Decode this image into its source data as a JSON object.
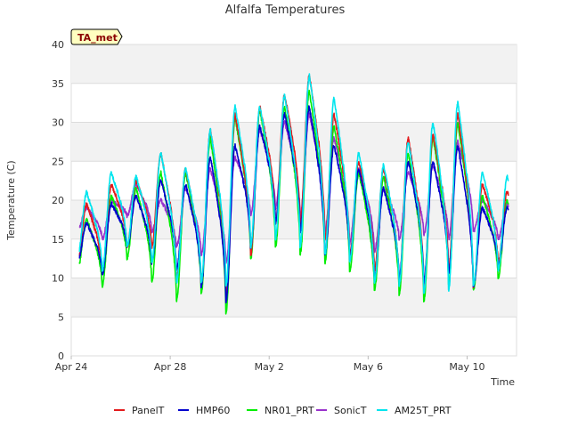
{
  "chart_data": {
    "type": "line",
    "title": "Alfalfa Temperatures",
    "xlabel": "Time",
    "ylabel": "Temperature (C)",
    "badge": "TA_met",
    "ylim": [
      0,
      40
    ],
    "yticks": [
      0,
      5,
      10,
      15,
      20,
      25,
      30,
      35,
      40
    ],
    "xlim": [
      "2023-04-24",
      "2023-05-12"
    ],
    "xticks": [
      {
        "date": "2023-04-24",
        "label": "Apr 24"
      },
      {
        "date": "2023-04-28",
        "label": "Apr 28"
      },
      {
        "date": "2023-05-02",
        "label": "May 2"
      },
      {
        "date": "2023-05-06",
        "label": "May 6"
      },
      {
        "date": "2023-05-10",
        "label": "May 10"
      }
    ],
    "grid": true,
    "legend_position": "bottom",
    "x": [
      "2023-04-24",
      "2023-04-25",
      "2023-04-26",
      "2023-04-27",
      "2023-04-28",
      "2023-04-29",
      "2023-04-30",
      "2023-05-01",
      "2023-05-02",
      "2023-05-03",
      "2023-05-04",
      "2023-05-05",
      "2023-05-06",
      "2023-05-07",
      "2023-05-08",
      "2023-05-09",
      "2023-05-10",
      "2023-05-11"
    ],
    "series": [
      {
        "name": "PanelT",
        "color": "#e31a1c",
        "min": [
          12,
          10.5,
          14,
          14,
          10,
          9,
          8,
          13,
          17,
          17,
          15,
          13,
          11,
          9.5,
          9,
          11,
          9,
          12
        ],
        "max": [
          19.5,
          22,
          22.5,
          26,
          24,
          29,
          31,
          32,
          33.5,
          36,
          31,
          25,
          24,
          28,
          28.5,
          31,
          22,
          21
        ]
      },
      {
        "name": "HMP60",
        "color": "#0000cd",
        "min": [
          12,
          10.5,
          14,
          12,
          11,
          9,
          7,
          14,
          17,
          16,
          13,
          12.5,
          10,
          10,
          9.5,
          10.5,
          9,
          11.5
        ],
        "max": [
          17,
          19.5,
          20.5,
          22.5,
          22,
          25.5,
          27,
          29.5,
          31,
          32,
          27,
          24,
          21.5,
          25,
          25,
          27,
          19,
          19
        ]
      },
      {
        "name": "NR01_PRT",
        "color": "#00ee00",
        "min": [
          11,
          9,
          12.5,
          9.5,
          7,
          8,
          5.5,
          12.5,
          14,
          13,
          12,
          11,
          8.5,
          8,
          7,
          9,
          8.5,
          10
        ],
        "max": [
          17.5,
          20.5,
          21.5,
          23.5,
          23.5,
          28,
          30.5,
          31.5,
          32,
          34,
          29.5,
          23.5,
          23,
          26,
          28,
          30,
          20.5,
          20
        ]
      },
      {
        "name": "SonicT",
        "color": "#9932cc",
        "min": [
          16,
          15,
          18,
          16,
          14,
          13,
          12,
          18,
          19,
          18,
          16,
          14.5,
          13.5,
          15,
          15.5,
          15,
          16,
          15
        ],
        "max": [
          19,
          20,
          22,
          20,
          21.5,
          24,
          25.5,
          29,
          30,
          31,
          28,
          24,
          21.5,
          23.5,
          24.5,
          27.5,
          20,
          19.5
        ]
      },
      {
        "name": "AM25T_PRT",
        "color": "#00e5ee",
        "min": [
          12.5,
          11,
          14,
          12,
          9.5,
          9.5,
          9,
          14,
          15,
          14,
          13,
          12,
          9.5,
          9,
          8,
          8.5,
          9,
          11
        ],
        "max": [
          21,
          23.5,
          23,
          26,
          24,
          29,
          32,
          32,
          33.5,
          36,
          33,
          26,
          24.5,
          27.5,
          30,
          32.5,
          23.5,
          23
        ]
      }
    ]
  }
}
